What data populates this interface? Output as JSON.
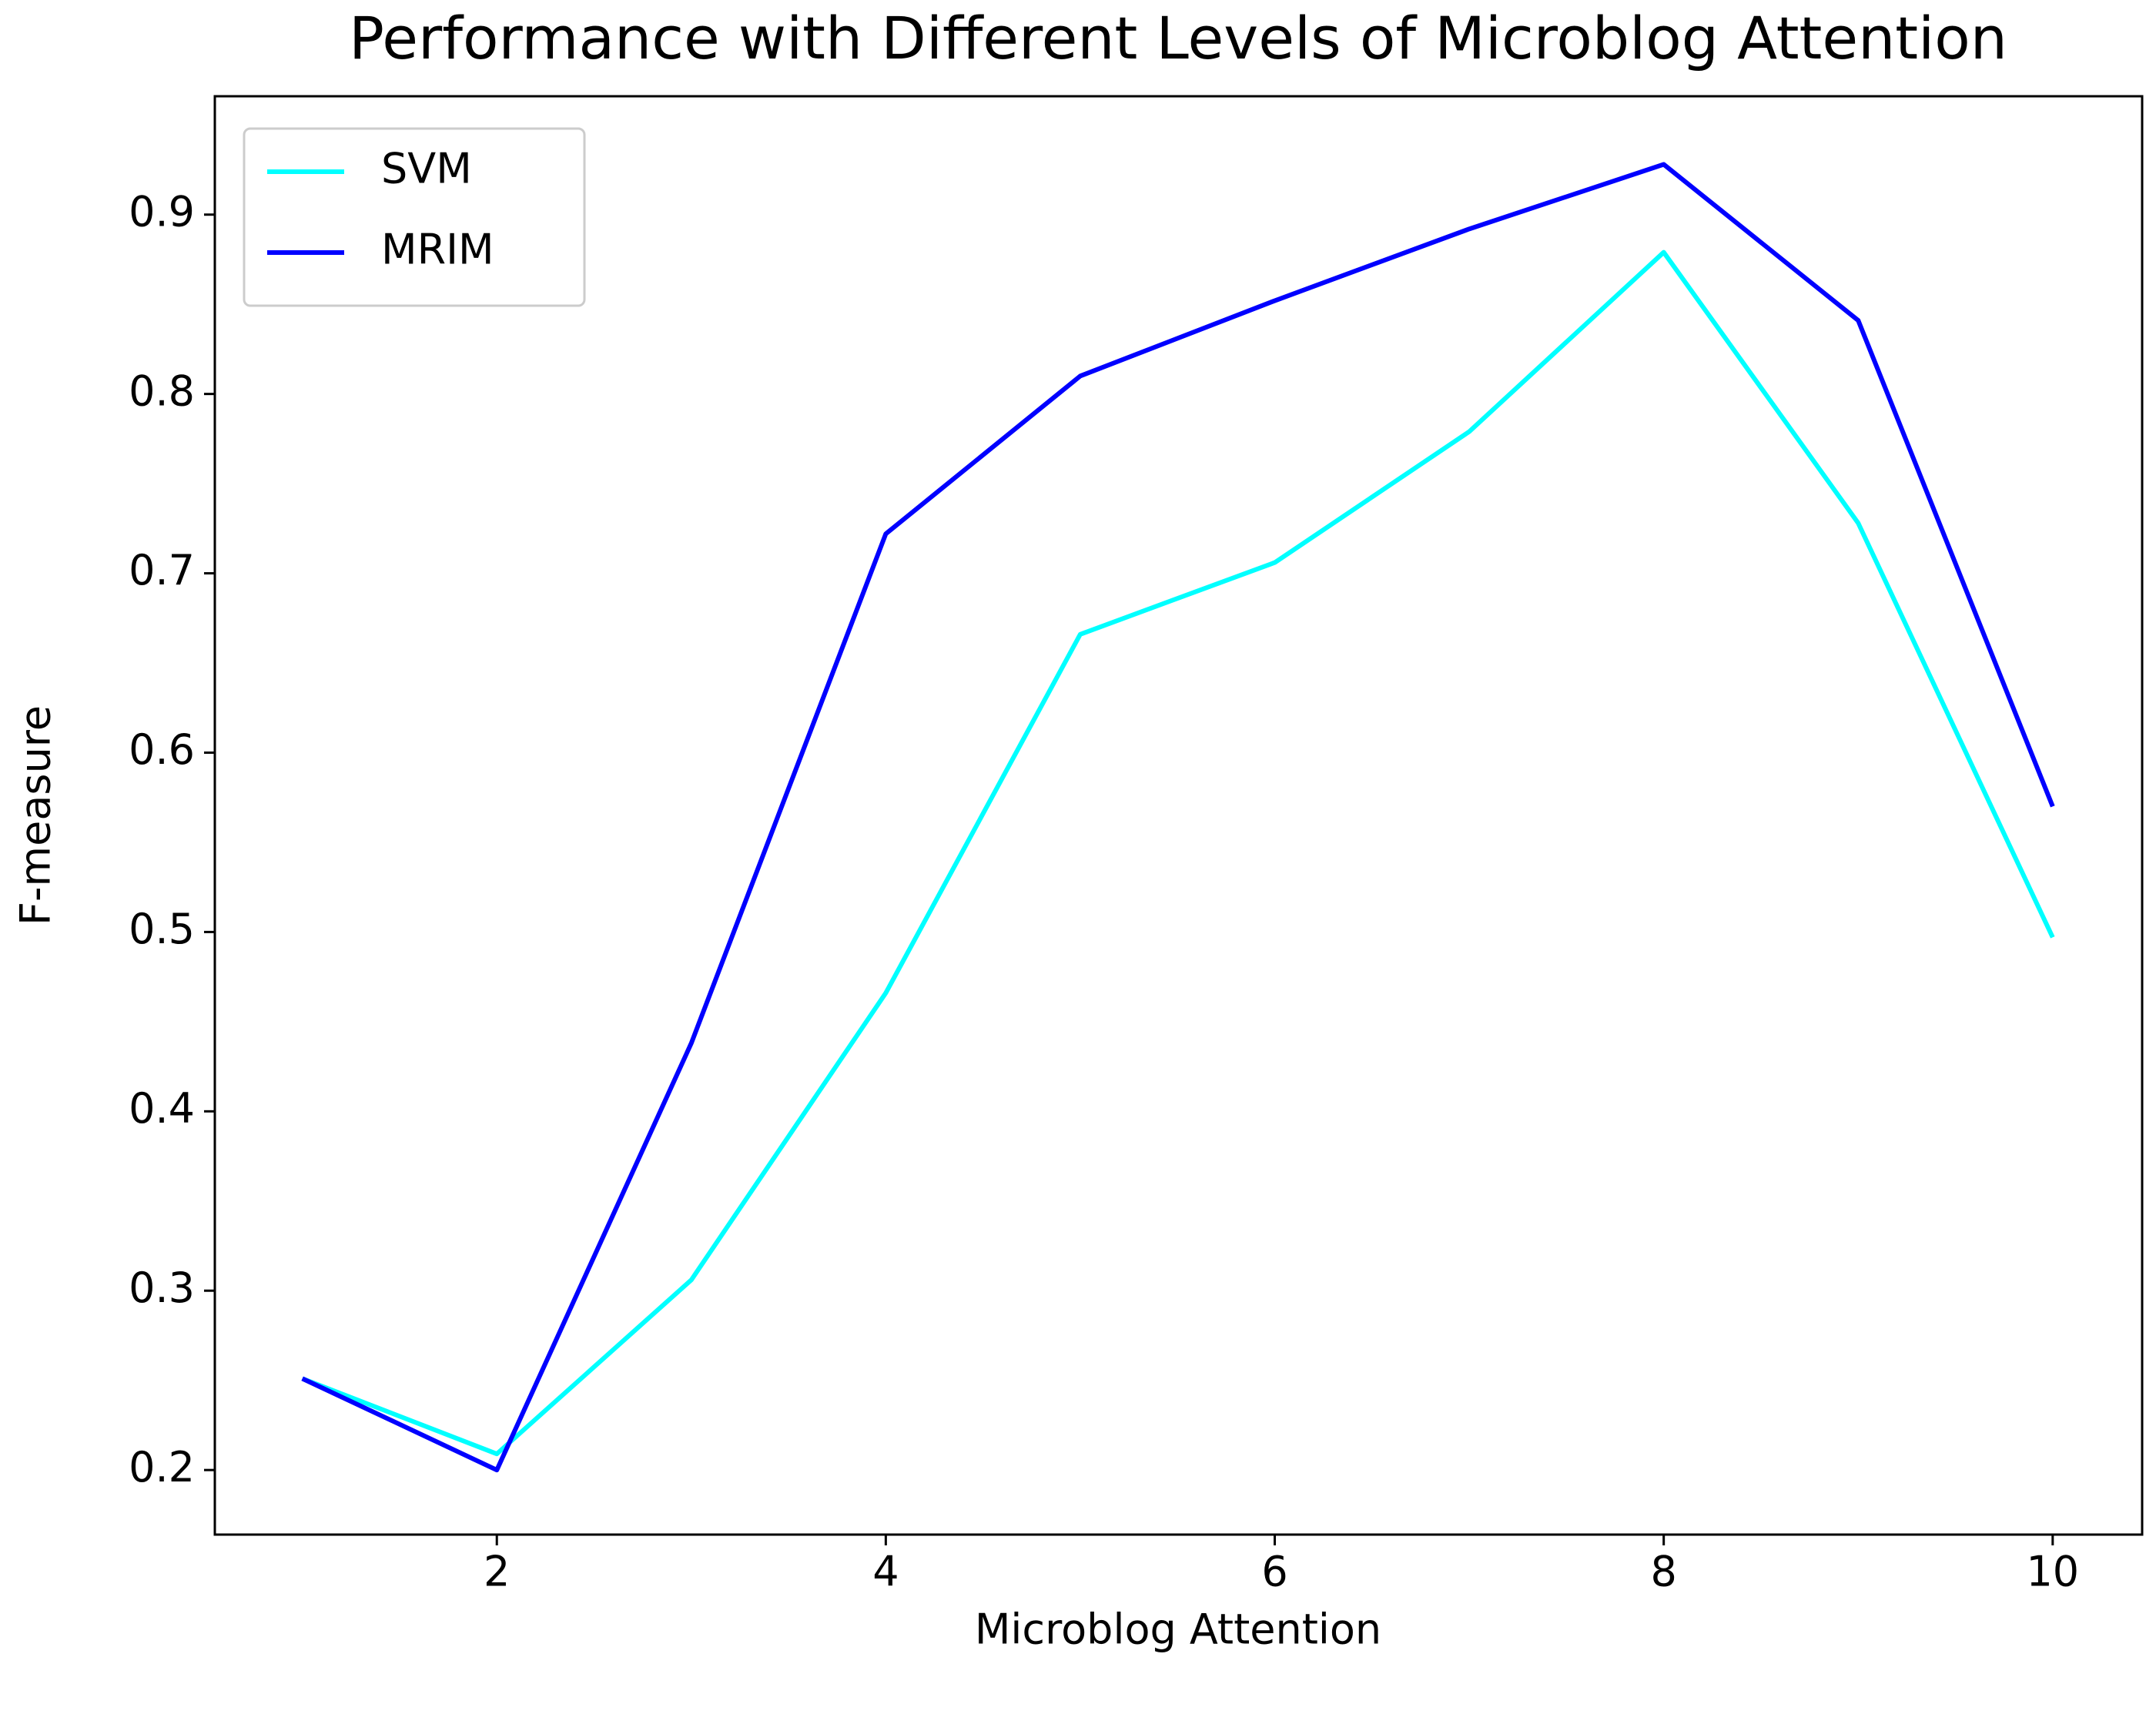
{
  "chart_data": {
    "type": "line",
    "title": "Performance with Different Levels of Microblog Attention",
    "xlabel": "Microblog Attention",
    "ylabel": "F-measure",
    "x": [
      1,
      2,
      3,
      4,
      5,
      6,
      7,
      8,
      9,
      10
    ],
    "series": [
      {
        "name": "SVM",
        "color": "#00ffff",
        "values": [
          0.251,
          0.209,
          0.306,
          0.466,
          0.666,
          0.706,
          0.779,
          0.879,
          0.728,
          0.497
        ]
      },
      {
        "name": "MRIM",
        "color": "#0000ff",
        "values": [
          0.251,
          0.2,
          0.438,
          0.722,
          0.81,
          0.852,
          0.892,
          0.928,
          0.841,
          0.57
        ]
      }
    ],
    "xlim": [
      0.55,
      10.46
    ],
    "ylim": [
      0.164,
      0.966
    ],
    "xticks": [
      2,
      4,
      6,
      8,
      10
    ],
    "yticks": [
      0.2,
      0.3,
      0.4,
      0.5,
      0.6,
      0.7,
      0.8,
      0.9
    ],
    "legend": "upper left"
  }
}
